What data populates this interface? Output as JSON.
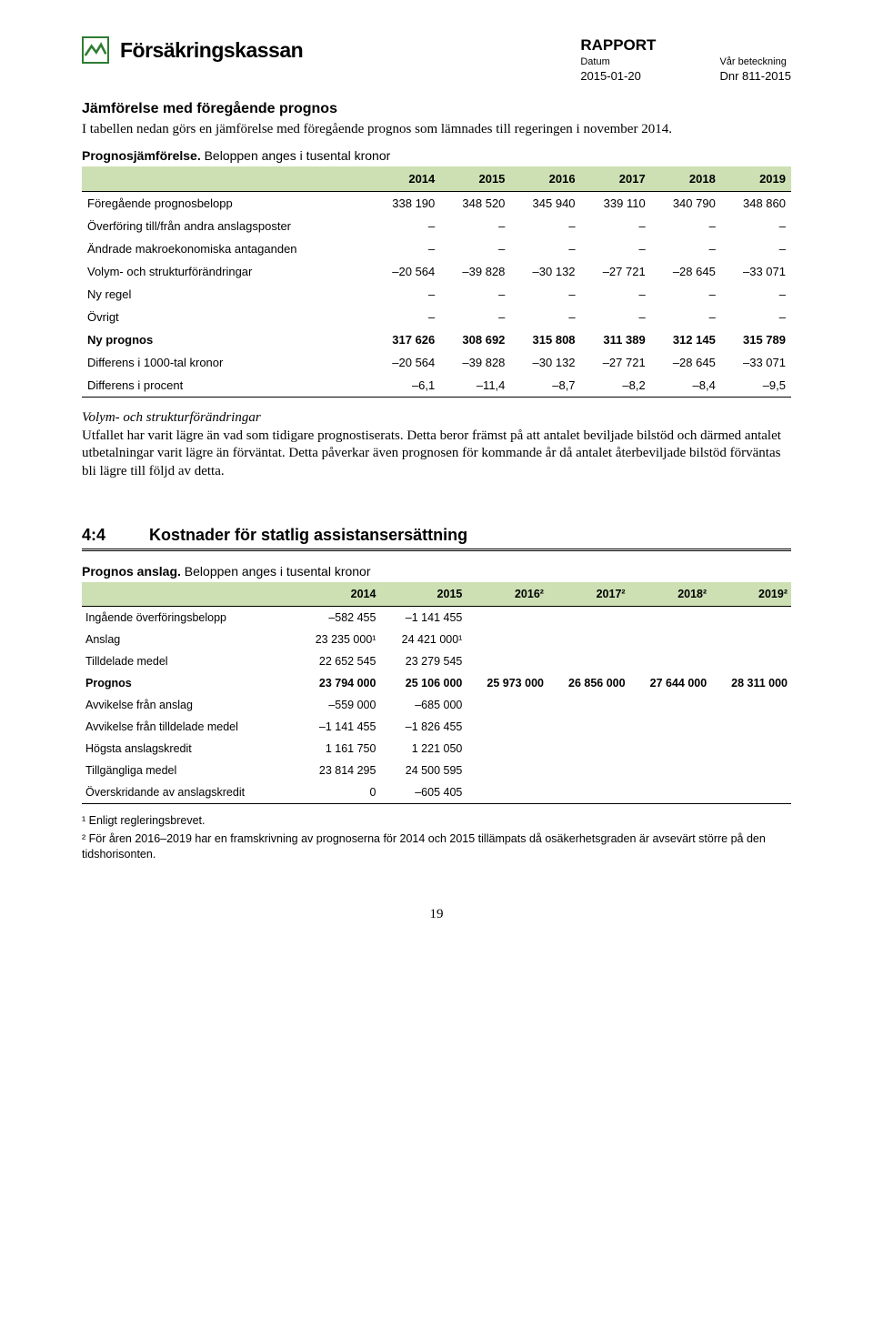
{
  "header": {
    "brand": "Försäkringskassan",
    "report_label": "RAPPORT",
    "date_label": "Datum",
    "date_value": "2015-01-20",
    "ref_label": "Vår beteckning",
    "ref_value": "Dnr 811-2015"
  },
  "section1": {
    "title": "Jämförelse med föregående prognos",
    "intro": "I tabellen nedan görs en jämförelse med föregående prognos som lämnades till regeringen i november 2014.",
    "caption_bold": "Prognosjämförelse.",
    "caption_rest": " Beloppen anges i tusental kronor"
  },
  "table1": {
    "header_bg": "#cde0b4",
    "columns": [
      "",
      "2014",
      "2015",
      "2016",
      "2017",
      "2018",
      "2019"
    ],
    "rows": [
      {
        "label": "Föregående prognosbelopp",
        "cells": [
          "338 190",
          "348 520",
          "345 940",
          "339 110",
          "340 790",
          "348 860"
        ],
        "bold": false
      },
      {
        "label": "Överföring till/från andra anslagsposter",
        "cells": [
          "–",
          "–",
          "–",
          "–",
          "–",
          "–"
        ],
        "bold": false
      },
      {
        "label": "Ändrade makroekonomiska antaganden",
        "cells": [
          "–",
          "–",
          "–",
          "–",
          "–",
          "–"
        ],
        "bold": false
      },
      {
        "label": "Volym- och strukturförändringar",
        "cells": [
          "–20 564",
          "–39 828",
          "–30 132",
          "–27 721",
          "–28 645",
          "–33 071"
        ],
        "bold": false
      },
      {
        "label": "Ny regel",
        "cells": [
          "–",
          "–",
          "–",
          "–",
          "–",
          "–"
        ],
        "bold": false
      },
      {
        "label": "Övrigt",
        "cells": [
          "–",
          "–",
          "–",
          "–",
          "–",
          "–"
        ],
        "bold": false
      },
      {
        "label": "Ny prognos",
        "cells": [
          "317 626",
          "308 692",
          "315 808",
          "311 389",
          "312 145",
          "315 789"
        ],
        "bold": true
      },
      {
        "label": "Differens i 1000-tal kronor",
        "cells": [
          "–20 564",
          "–39 828",
          "–30 132",
          "–27 721",
          "–28 645",
          "–33 071"
        ],
        "bold": false
      },
      {
        "label": "Differens i procent",
        "cells": [
          "–6,1",
          "–11,4",
          "–8,7",
          "–8,2",
          "–8,4",
          "–9,5"
        ],
        "bold": false
      }
    ]
  },
  "para1": {
    "head": "Volym- och strukturförändringar",
    "body": "Utfallet har varit lägre än vad som tidigare prognostiserats. Detta beror främst på att antalet beviljade bilstöd och därmed antalet utbetalningar varit lägre än förväntat. Detta påverkar även prognosen för kommande år då antalet återbeviljade bilstöd förväntas bli lägre till följd av detta."
  },
  "section2": {
    "num": "4:4",
    "title": "Kostnader för statlig assistansersättning",
    "caption_bold": "Prognos anslag.",
    "caption_rest": " Beloppen anges i tusental kronor"
  },
  "table2": {
    "header_bg": "#cde0b4",
    "columns": [
      "",
      "2014",
      "2015",
      "2016²",
      "2017²",
      "2018²",
      "2019²"
    ],
    "rows": [
      {
        "label": "Ingående överföringsbelopp",
        "cells": [
          "–582 455",
          "–1 141 455",
          "",
          "",
          "",
          ""
        ],
        "bold": false
      },
      {
        "label": "Anslag",
        "cells": [
          "23 235 000¹",
          "24 421 000¹",
          "",
          "",
          "",
          ""
        ],
        "bold": false
      },
      {
        "label": "Tilldelade medel",
        "cells": [
          "22 652 545",
          "23 279 545",
          "",
          "",
          "",
          ""
        ],
        "bold": false
      },
      {
        "label": "Prognos",
        "cells": [
          "23 794 000",
          "25 106 000",
          "25 973 000",
          "26 856 000",
          "27 644 000",
          "28 311 000"
        ],
        "bold": true
      },
      {
        "label": "Avvikelse från anslag",
        "cells": [
          "–559 000",
          "–685 000",
          "",
          "",
          "",
          ""
        ],
        "bold": false
      },
      {
        "label": "Avvikelse från tilldelade medel",
        "cells": [
          "–1 141 455",
          "–1 826 455",
          "",
          "",
          "",
          ""
        ],
        "bold": false
      },
      {
        "label": "Högsta anslagskredit",
        "cells": [
          "1 161 750",
          "1 221 050",
          "",
          "",
          "",
          ""
        ],
        "bold": false
      },
      {
        "label": "Tillgängliga medel",
        "cells": [
          "23 814 295",
          "24 500 595",
          "",
          "",
          "",
          ""
        ],
        "bold": false
      },
      {
        "label": "Överskridande av anslagskredit",
        "cells": [
          "0",
          "–605 405",
          "",
          "",
          "",
          ""
        ],
        "bold": false
      }
    ]
  },
  "footnotes": {
    "f1": "¹ Enligt regleringsbrevet.",
    "f2": "² För åren 2016–2019 har en framskrivning av prognoserna för 2014 och 2015 tillämpats då osäkerhetsgraden är avsevärt större på den tidshorisonten."
  },
  "page_number": "19",
  "colors": {
    "brand_green": "#2e7d32",
    "table_header_bg": "#cde0b4",
    "text": "#000000",
    "bg": "#ffffff"
  }
}
